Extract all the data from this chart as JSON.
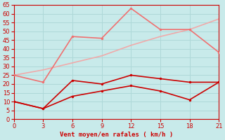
{
  "xlabel": "Vent moyen/en rafales ( km/h )",
  "x": [
    0,
    3,
    6,
    9,
    12,
    15,
    18,
    21
  ],
  "line_light_straight": [
    25,
    28,
    32,
    36,
    42,
    47,
    51,
    57
  ],
  "line_medium_peaked": [
    25,
    21,
    47,
    46,
    63,
    51,
    51,
    38
  ],
  "line_dark_upper": [
    10,
    6,
    22,
    20,
    25,
    23,
    21,
    21
  ],
  "line_dark_lower": [
    10,
    6,
    13,
    16,
    19,
    16,
    11,
    21
  ],
  "color_light": "#f0aaaa",
  "color_medium": "#f07070",
  "color_dark": "#cc0000",
  "background": "#c8eaea",
  "grid_color": "#aed8d8",
  "ylim": [
    0,
    65
  ],
  "xlim": [
    0,
    21
  ],
  "yticks": [
    0,
    5,
    10,
    15,
    20,
    25,
    30,
    35,
    40,
    45,
    50,
    55,
    60,
    65
  ],
  "xticks": [
    0,
    3,
    6,
    9,
    12,
    15,
    18,
    21
  ]
}
